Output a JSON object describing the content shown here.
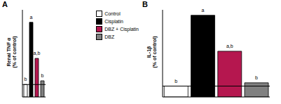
{
  "chart_data": [
    {
      "type": "bar",
      "title": "A",
      "ylabel": [
        "Renal TNF α",
        "(% of control)"
      ],
      "categories": [
        null
      ],
      "series": [
        {
          "name": "Control",
          "color": "#ffffff",
          "values": [
            100
          ]
        },
        {
          "name": "Cisplatin",
          "color": "#000000",
          "values": [
            600
          ]
        },
        {
          "name": "DBZ + Cisplatin",
          "color": "#b5174f",
          "values": [
            310
          ]
        },
        {
          "name": "DBZ",
          "color": "#808080",
          "values": [
            130
          ]
        }
      ],
      "annotations": [
        "b",
        "a",
        "a,b",
        "b"
      ],
      "hline": 100,
      "ylim": [
        0,
        700
      ],
      "tick_labels": false,
      "legend": "upper right"
    },
    {
      "type": "bar",
      "title": "B",
      "ylabel": [
        "IL-1β",
        "(% of control)"
      ],
      "categories": [
        null,
        null,
        null,
        null
      ],
      "values": [
        100,
        750,
        420,
        130
      ],
      "colors": [
        "#ffffff",
        "#000000",
        "#b5174f",
        "#808080"
      ],
      "annotations": [
        "b",
        "a",
        "a,b",
        "b"
      ],
      "hline": 100,
      "ylim": [
        0,
        800
      ],
      "tick_labels": false
    }
  ]
}
